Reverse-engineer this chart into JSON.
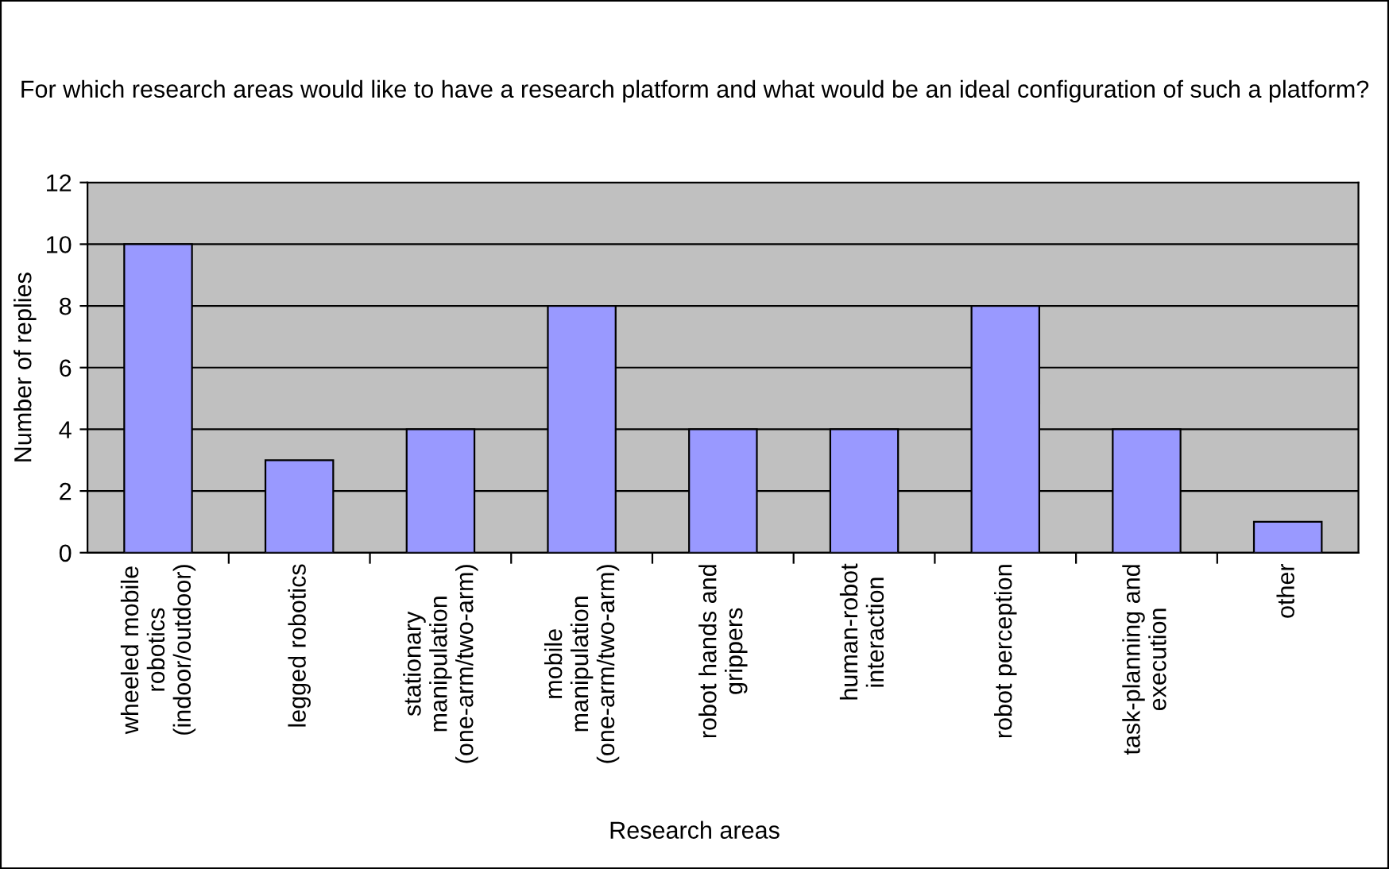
{
  "chart_data": {
    "type": "bar",
    "title": "For which research areas would like to have a research platform and what would be an ideal configuration of such a platform?",
    "xlabel": "Research areas",
    "ylabel": "Number of replies",
    "categories": [
      "wheeled mobile robotics (indoor/outdoor)",
      "legged robotics",
      "stationary manipulation (one-arm/two-arm)",
      "mobile manipulation (one-arm/two-arm)",
      "robot hands and grippers",
      "human-robot interaction",
      "robot perception",
      "task-planning and execution",
      "other"
    ],
    "values": [
      10,
      3,
      4,
      8,
      4,
      4,
      8,
      4,
      1
    ],
    "color": "#9999ff",
    "ylim": [
      0,
      12
    ],
    "yticks": [
      0,
      2,
      4,
      6,
      8,
      10,
      12
    ],
    "grid": "y",
    "legend": false
  }
}
